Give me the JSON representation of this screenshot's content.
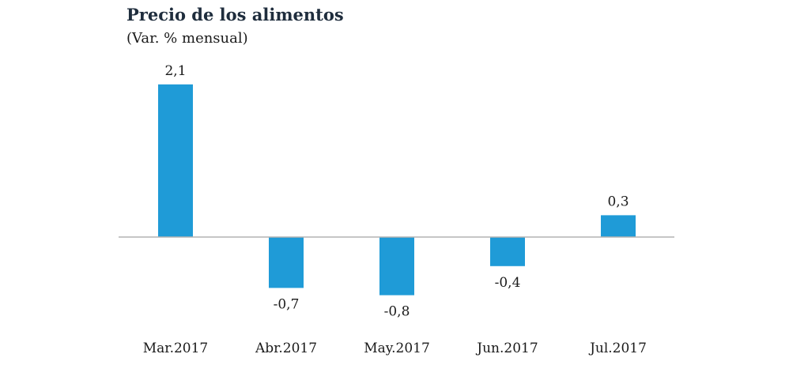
{
  "chart_data": {
    "type": "bar",
    "title": "Precio de los alimentos",
    "subtitle": "(Var. % mensual)",
    "xlabel": "",
    "ylabel": "",
    "categories": [
      "Mar.2017",
      "Abr.2017",
      "May.2017",
      "Jun.2017",
      "Jul.2017"
    ],
    "values": [
      2.1,
      -0.7,
      -0.8,
      -0.4,
      0.3
    ],
    "data_labels": [
      "2,1",
      "-0,7",
      "-0,8",
      "-0,4",
      "0,3"
    ],
    "ylim": [
      -0.8,
      2.1
    ],
    "grid": false,
    "legend": "none",
    "colors": {
      "bar": "#1f9bd7",
      "axis": "#b3b3b3",
      "text": "#1a1a1a",
      "title": "#1f2d3d"
    }
  }
}
